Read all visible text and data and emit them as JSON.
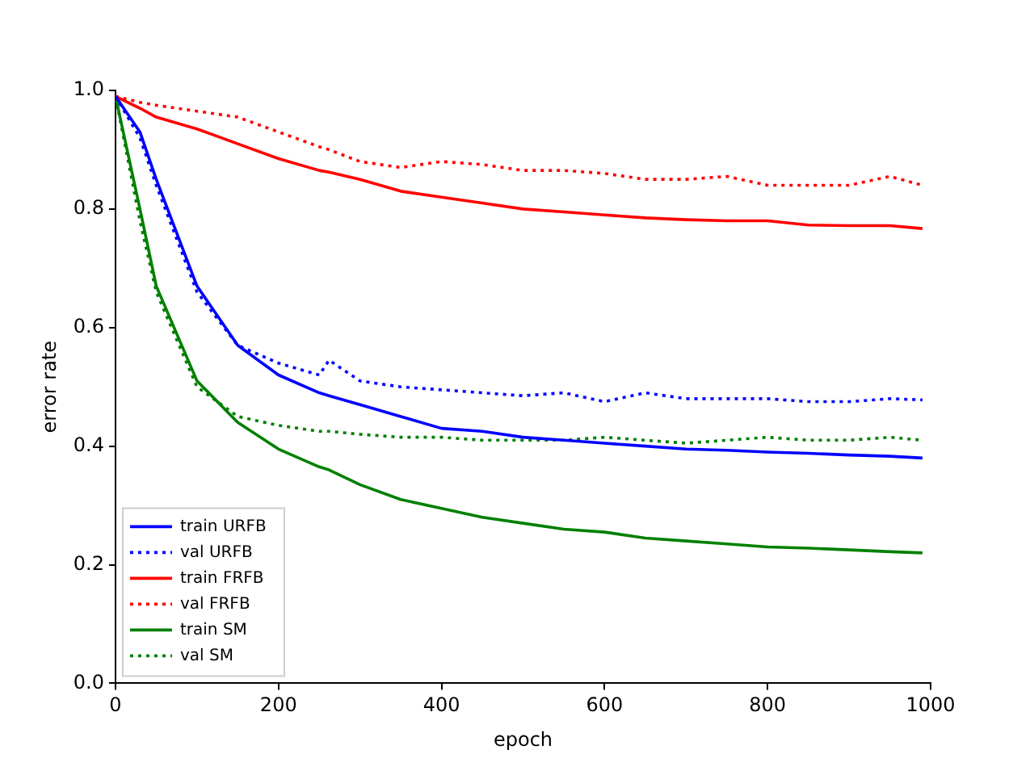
{
  "chart_data": {
    "type": "line",
    "xlabel": "epoch",
    "ylabel": "error rate",
    "xlim": [
      0,
      1000
    ],
    "ylim": [
      0,
      1
    ],
    "xticks": [
      0,
      200,
      400,
      600,
      800,
      1000
    ],
    "yticks": [
      {
        "value": 0,
        "label": "0.0"
      },
      0.2,
      0.4,
      0.6,
      0.8,
      {
        "value": 1,
        "label": "1.0"
      }
    ],
    "x": [
      0,
      30,
      50,
      100,
      150,
      200,
      250,
      262,
      300,
      350,
      400,
      450,
      500,
      550,
      600,
      650,
      700,
      750,
      800,
      850,
      900,
      950,
      990
    ],
    "grid": false,
    "legend": "bottom left",
    "series": [
      {
        "name": "train URFB",
        "color": "#0000ff",
        "line_style": "solid",
        "values": [
          0.99,
          0.93,
          0.85,
          0.67,
          0.57,
          0.52,
          0.49,
          0.485,
          0.47,
          0.45,
          0.43,
          0.425,
          0.415,
          0.41,
          0.405,
          0.4,
          0.395,
          0.393,
          0.39,
          0.388,
          0.385,
          0.383,
          0.38
        ]
      },
      {
        "name": "val URFB",
        "color": "#0000ff",
        "line_style": "dotted",
        "values": [
          0.99,
          0.92,
          0.84,
          0.66,
          0.57,
          0.54,
          0.52,
          0.545,
          0.51,
          0.5,
          0.495,
          0.49,
          0.485,
          0.49,
          0.475,
          0.49,
          0.48,
          0.48,
          0.48,
          0.475,
          0.475,
          0.48,
          0.478
        ]
      },
      {
        "name": "train FRFB",
        "color": "#ff0000",
        "line_style": "solid",
        "values": [
          0.99,
          0.97,
          0.955,
          0.935,
          0.91,
          0.885,
          0.865,
          0.862,
          0.85,
          0.83,
          0.82,
          0.81,
          0.8,
          0.795,
          0.79,
          0.785,
          0.782,
          0.78,
          0.78,
          0.773,
          0.772,
          0.772,
          0.767
        ]
      },
      {
        "name": "val FRFB",
        "color": "#ff0000",
        "line_style": "dotted",
        "values": [
          0.99,
          0.98,
          0.975,
          0.965,
          0.955,
          0.93,
          0.905,
          0.9,
          0.88,
          0.87,
          0.88,
          0.875,
          0.865,
          0.865,
          0.86,
          0.85,
          0.85,
          0.855,
          0.84,
          0.84,
          0.84,
          0.855,
          0.84
        ]
      },
      {
        "name": "train SM",
        "color": "#008000",
        "line_style": "solid",
        "values": [
          0.99,
          0.8,
          0.67,
          0.51,
          0.44,
          0.395,
          0.365,
          0.36,
          0.335,
          0.31,
          0.295,
          0.28,
          0.27,
          0.26,
          0.255,
          0.245,
          0.24,
          0.235,
          0.23,
          0.228,
          0.225,
          0.222,
          0.22
        ]
      },
      {
        "name": "val SM",
        "color": "#008000",
        "line_style": "dotted",
        "values": [
          0.99,
          0.78,
          0.66,
          0.5,
          0.45,
          0.435,
          0.425,
          0.425,
          0.42,
          0.415,
          0.415,
          0.41,
          0.41,
          0.41,
          0.415,
          0.41,
          0.405,
          0.41,
          0.415,
          0.41,
          0.41,
          0.415,
          0.41
        ]
      }
    ]
  }
}
